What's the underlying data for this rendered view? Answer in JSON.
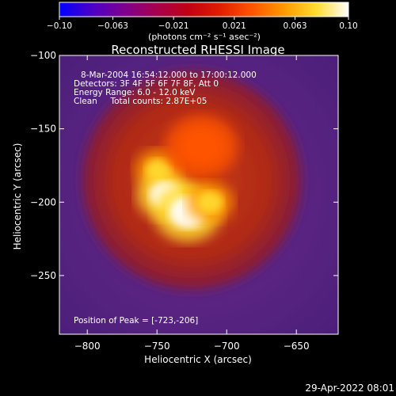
{
  "colorbar": {
    "ticks": [
      "-0.10",
      "-0.063",
      "-0.021",
      "0.021",
      "0.063",
      "0.10"
    ],
    "unit_label": "(photons cm⁻² s⁻¹ asec⁻²)",
    "colormap": [
      "#0000ff",
      "#4b00c8",
      "#7d0090",
      "#a60050",
      "#c10014",
      "#e01e00",
      "#ff5500",
      "#ff9a00",
      "#ffdc30",
      "#ffffff"
    ]
  },
  "plot": {
    "title": "Reconstructed RHESSI Image",
    "info_lines": [
      "8-Mar-2004 16:54:12.000 to 17:00:12.000",
      "Detectors: 3F 4F 5F 6F 7F 8F, Att 0",
      "Energy Range: 6.0 - 12.0 keV",
      "Clean     Total counts: 2.87E+05"
    ],
    "peak_text": "Position of Peak = [-723,-206]"
  },
  "chart_data": {
    "type": "heatmap",
    "title": "Reconstructed RHESSI Image",
    "xlabel": "Heliocentric X (arcsec)",
    "ylabel": "Heliocentric Y (arcsec)",
    "xlim": [
      -820,
      -620
    ],
    "ylim": [
      -290,
      -100
    ],
    "xticks": [
      -800,
      -750,
      -700,
      -650
    ],
    "xtick_labels": [
      "−800",
      "−750",
      "−700",
      "−650"
    ],
    "yticks": [
      -100,
      -150,
      -200,
      -250
    ],
    "ytick_labels": [
      "−100",
      "−150",
      "−200",
      "−250"
    ],
    "colorbar_range": [
      -0.1,
      0.1
    ],
    "peak_position": [
      -723,
      -206
    ],
    "sources": [
      {
        "x": -749,
        "y": -178,
        "sigma": 9,
        "intensity": 0.085
      },
      {
        "x": -744,
        "y": -195,
        "sigma": 11,
        "intensity": 0.09
      },
      {
        "x": -728,
        "y": -207,
        "sigma": 13,
        "intensity": 0.1
      },
      {
        "x": -712,
        "y": -200,
        "sigma": 9,
        "intensity": 0.07
      },
      {
        "x": -718,
        "y": -162,
        "sigma": 14,
        "intensity": 0.03
      }
    ],
    "background_disk": {
      "center": [
        -725,
        -185
      ],
      "radius": 80,
      "intensity": 0.03
    }
  },
  "footer": {
    "timestamp": "29-Apr-2022 08:01"
  }
}
